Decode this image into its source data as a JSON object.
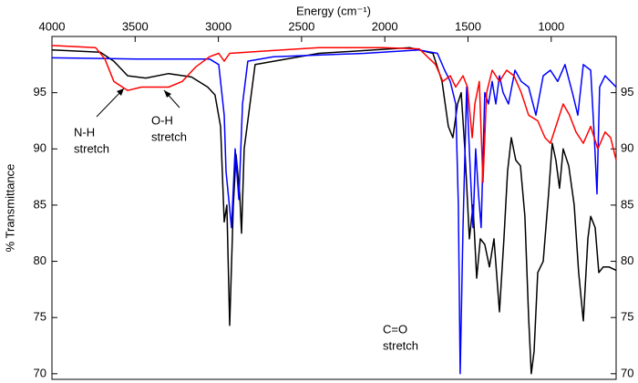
{
  "chart_data": {
    "type": "line",
    "xlabel": "Energy (cm⁻¹)",
    "ylabel": "% Transmittance",
    "xlim": [
      4000,
      610
    ],
    "xticks": [
      4000,
      3500,
      3000,
      2500,
      2000,
      1500,
      1000
    ],
    "ylim": [
      69.5,
      100
    ],
    "yticks": [
      70,
      75,
      80,
      85,
      90,
      95
    ],
    "grid": false,
    "series": [
      {
        "color": "#000000",
        "x": [
          4000,
          3710,
          3628,
          3545,
          3436,
          3299,
          3162,
          3064,
          3020,
          2987,
          2965,
          2949,
          2932,
          2910,
          2894,
          2872,
          2861,
          2845,
          2779,
          2396,
          1848,
          1711,
          1656,
          1618,
          1591,
          1563,
          1541,
          1519,
          1492,
          1470,
          1448,
          1426,
          1399,
          1371,
          1344,
          1311,
          1284,
          1262,
          1240,
          1213,
          1185,
          1158,
          1136,
          1120,
          1103,
          1081,
          1048,
          1016,
          994,
          972,
          950,
          928,
          895,
          862,
          835,
          807,
          780,
          763,
          736,
          714,
          687,
          654,
          610
        ],
        "values": [
          98.8,
          98.6,
          97.8,
          96.5,
          96.3,
          96.7,
          96.4,
          95.5,
          94.8,
          92,
          83.5,
          85,
          74.3,
          85,
          89.5,
          86,
          82.5,
          90,
          97.5,
          98.5,
          99,
          98.5,
          96,
          92,
          91,
          94,
          95,
          90,
          82,
          85,
          78.5,
          82,
          81.5,
          79.5,
          82,
          75.5,
          82,
          88,
          91,
          89,
          88.5,
          84,
          75,
          70,
          72,
          79,
          80,
          86,
          90.5,
          89,
          86.5,
          90,
          88.5,
          85,
          79,
          74.7,
          82,
          84,
          83,
          79,
          79.5,
          79.5,
          79.2
        ]
      },
      {
        "color": "#0000ff",
        "x": [
          4000,
          3491,
          3053,
          2998,
          2965,
          2954,
          2921,
          2899,
          2877,
          2855,
          2823,
          2669,
          2122,
          1793,
          1684,
          1640,
          1607,
          1574,
          1558,
          1547,
          1530,
          1508,
          1486,
          1470,
          1454,
          1437,
          1421,
          1399,
          1377,
          1355,
          1333,
          1311,
          1289,
          1257,
          1218,
          1180,
          1136,
          1092,
          1048,
          1005,
          961,
          917,
          873,
          840,
          807,
          763,
          741,
          725,
          709,
          676,
          643,
          610
        ],
        "values": [
          98.1,
          98,
          98,
          97.5,
          93,
          88,
          83,
          90,
          85.5,
          94,
          97.8,
          98.2,
          98.5,
          98.8,
          98.5,
          97,
          96,
          94,
          85,
          70,
          83,
          95.5,
          88,
          83,
          90,
          86,
          83,
          95,
          94,
          96,
          94,
          96.5,
          95,
          94,
          97,
          96,
          95.5,
          93,
          96.5,
          97,
          96,
          97.5,
          95,
          93,
          97.5,
          97,
          91,
          86,
          95.5,
          96.5,
          96,
          95.5
        ]
      },
      {
        "color": "#ff0000",
        "x": [
          4000,
          3737,
          3682,
          3628,
          3545,
          3463,
          3381,
          3299,
          3217,
          3135,
          3053,
          2998,
          2965,
          2932,
          2724,
          2396,
          2012,
          1793,
          1695,
          1651,
          1607,
          1574,
          1530,
          1503,
          1475,
          1459,
          1432,
          1410,
          1388,
          1355,
          1311,
          1268,
          1224,
          1180,
          1136,
          1081,
          1037,
          1005,
          961,
          928,
          890,
          851,
          807,
          763,
          720,
          676,
          643,
          610
        ],
        "values": [
          99.2,
          99,
          98,
          96,
          95.2,
          95.5,
          95.5,
          95.5,
          96,
          97.3,
          98.2,
          98.5,
          97.8,
          98.5,
          98.7,
          99,
          99,
          98.9,
          97.5,
          96,
          96.5,
          95.5,
          96.5,
          95.5,
          91,
          94,
          96,
          87,
          95,
          97,
          96,
          97,
          96.5,
          95,
          93,
          92.5,
          91,
          90.5,
          92.5,
          94,
          93,
          91.5,
          90.5,
          92,
          90,
          91.5,
          91,
          89
        ]
      }
    ],
    "annotations": [
      {
        "lines": [
          "N-H",
          "stretch"
        ]
      },
      {
        "lines": [
          "O-H",
          "stretch"
        ]
      },
      {
        "lines": [
          "C=O",
          "stretch"
        ]
      }
    ]
  }
}
